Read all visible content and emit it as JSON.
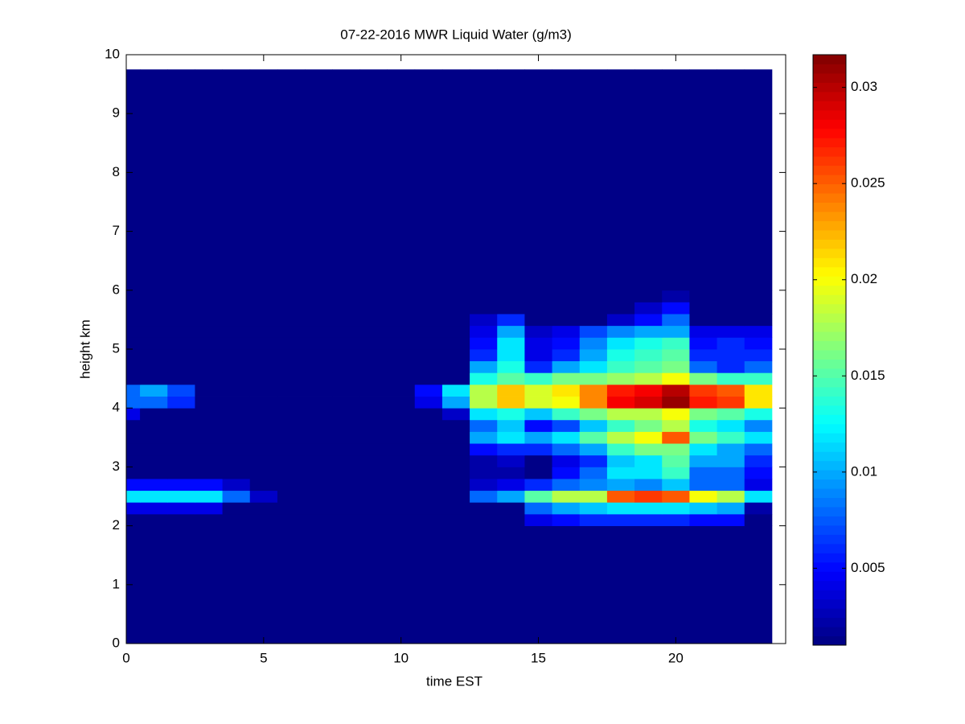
{
  "chart_data": {
    "type": "heatmap",
    "title": "07-22-2016 MWR Liquid Water (g/m3)",
    "xlabel": "time EST",
    "ylabel": "height km",
    "colormap": "jet",
    "x": [
      0,
      0.5,
      1.5,
      2.5,
      3.5,
      4.5,
      5.5,
      6.5,
      7.5,
      8.5,
      9.5,
      10.5,
      11.5,
      12.5,
      13.5,
      14.5,
      15.5,
      16.5,
      17.5,
      18.5,
      19.5,
      20.5,
      21.5,
      22.5,
      23.5
    ],
    "y": [
      0,
      2,
      2.2,
      2.4,
      2.6,
      2.8,
      3,
      3.2,
      3.4,
      3.6,
      3.8,
      4,
      4.2,
      4.4,
      4.6,
      4.8,
      5,
      5.2,
      5.4,
      5.6,
      5.8,
      6,
      9.75
    ],
    "z": [
      [
        0.001,
        0.001,
        0.001,
        0.001,
        0.001,
        0.001,
        0.001,
        0.001,
        0.001,
        0.001,
        0.001,
        0.001,
        0.001,
        0.001,
        0.001,
        0.001,
        0.001,
        0.001,
        0.001,
        0.001,
        0.001,
        0.001,
        0.001,
        0.001
      ],
      [
        0.001,
        0.001,
        0.001,
        0.001,
        0.001,
        0.001,
        0.001,
        0.001,
        0.001,
        0.001,
        0.001,
        0.001,
        0.001,
        0.001,
        0.001,
        0.004,
        0.005,
        0.006,
        0.006,
        0.006,
        0.006,
        0.005,
        0.005,
        0.001
      ],
      [
        0.004,
        0.004,
        0.004,
        0.004,
        0.001,
        0.001,
        0.001,
        0.001,
        0.001,
        0.001,
        0.001,
        0.001,
        0.001,
        0.001,
        0.001,
        0.008,
        0.01,
        0.011,
        0.012,
        0.012,
        0.012,
        0.011,
        0.01,
        0.002
      ],
      [
        0.012,
        0.012,
        0.012,
        0.012,
        0.008,
        0.003,
        0.001,
        0.001,
        0.001,
        0.001,
        0.001,
        0.001,
        0.001,
        0.008,
        0.01,
        0.015,
        0.018,
        0.018,
        0.025,
        0.026,
        0.025,
        0.02,
        0.018,
        0.012
      ],
      [
        0.005,
        0.005,
        0.005,
        0.005,
        0.003,
        0.001,
        0.001,
        0.001,
        0.001,
        0.001,
        0.001,
        0.001,
        0.001,
        0.003,
        0.004,
        0.006,
        0.008,
        0.009,
        0.01,
        0.009,
        0.011,
        0.008,
        0.008,
        0.004
      ],
      [
        0.001,
        0.001,
        0.001,
        0.001,
        0.001,
        0.001,
        0.001,
        0.001,
        0.001,
        0.001,
        0.001,
        0.001,
        0.001,
        0.002,
        0.002,
        0.001,
        0.005,
        0.008,
        0.012,
        0.012,
        0.014,
        0.008,
        0.008,
        0.005
      ],
      [
        0.001,
        0.001,
        0.001,
        0.001,
        0.001,
        0.001,
        0.001,
        0.001,
        0.001,
        0.001,
        0.001,
        0.001,
        0.001,
        0.002,
        0.003,
        0.001,
        0.004,
        0.006,
        0.011,
        0.012,
        0.015,
        0.01,
        0.01,
        0.006
      ],
      [
        0.001,
        0.001,
        0.001,
        0.001,
        0.001,
        0.001,
        0.001,
        0.001,
        0.001,
        0.001,
        0.001,
        0.001,
        0.001,
        0.005,
        0.006,
        0.006,
        0.008,
        0.01,
        0.014,
        0.016,
        0.016,
        0.012,
        0.01,
        0.008
      ],
      [
        0.001,
        0.001,
        0.001,
        0.001,
        0.001,
        0.001,
        0.001,
        0.001,
        0.001,
        0.001,
        0.001,
        0.001,
        0.001,
        0.01,
        0.012,
        0.01,
        0.012,
        0.015,
        0.018,
        0.02,
        0.025,
        0.016,
        0.014,
        0.012
      ],
      [
        0.001,
        0.001,
        0.001,
        0.001,
        0.001,
        0.001,
        0.001,
        0.001,
        0.001,
        0.001,
        0.001,
        0.001,
        0.001,
        0.008,
        0.011,
        0.005,
        0.007,
        0.011,
        0.014,
        0.016,
        0.018,
        0.013,
        0.012,
        0.009
      ],
      [
        0.004,
        0.001,
        0.001,
        0.001,
        0.001,
        0.001,
        0.001,
        0.001,
        0.001,
        0.001,
        0.001,
        0.001,
        0.003,
        0.012,
        0.013,
        0.011,
        0.014,
        0.016,
        0.018,
        0.018,
        0.02,
        0.016,
        0.015,
        0.013
      ],
      [
        0.008,
        0.008,
        0.006,
        0.001,
        0.001,
        0.001,
        0.001,
        0.001,
        0.001,
        0.001,
        0.001,
        0.004,
        0.01,
        0.018,
        0.022,
        0.019,
        0.02,
        0.024,
        0.028,
        0.029,
        0.031,
        0.027,
        0.026,
        0.021
      ],
      [
        0.008,
        0.01,
        0.007,
        0.001,
        0.001,
        0.001,
        0.001,
        0.001,
        0.001,
        0.001,
        0.001,
        0.005,
        0.012,
        0.018,
        0.022,
        0.019,
        0.021,
        0.024,
        0.027,
        0.028,
        0.03,
        0.026,
        0.025,
        0.021
      ],
      [
        0.001,
        0.001,
        0.001,
        0.001,
        0.001,
        0.001,
        0.001,
        0.001,
        0.001,
        0.001,
        0.001,
        0.001,
        0.001,
        0.013,
        0.015,
        0.014,
        0.016,
        0.016,
        0.017,
        0.018,
        0.02,
        0.016,
        0.014,
        0.014
      ],
      [
        0.001,
        0.001,
        0.001,
        0.001,
        0.001,
        0.001,
        0.001,
        0.001,
        0.001,
        0.001,
        0.001,
        0.001,
        0.001,
        0.01,
        0.013,
        0.006,
        0.01,
        0.012,
        0.014,
        0.015,
        0.016,
        0.008,
        0.006,
        0.008
      ],
      [
        0.001,
        0.001,
        0.001,
        0.001,
        0.001,
        0.001,
        0.001,
        0.001,
        0.001,
        0.001,
        0.001,
        0.001,
        0.001,
        0.006,
        0.012,
        0.004,
        0.006,
        0.01,
        0.013,
        0.014,
        0.015,
        0.006,
        0.006,
        0.006
      ],
      [
        0.001,
        0.001,
        0.001,
        0.001,
        0.001,
        0.001,
        0.001,
        0.001,
        0.001,
        0.001,
        0.001,
        0.001,
        0.001,
        0.005,
        0.012,
        0.004,
        0.005,
        0.009,
        0.012,
        0.013,
        0.014,
        0.005,
        0.006,
        0.005
      ],
      [
        0.001,
        0.001,
        0.001,
        0.001,
        0.001,
        0.001,
        0.001,
        0.001,
        0.001,
        0.001,
        0.001,
        0.001,
        0.001,
        0.004,
        0.01,
        0.003,
        0.004,
        0.007,
        0.009,
        0.01,
        0.01,
        0.004,
        0.004,
        0.004
      ],
      [
        0.001,
        0.001,
        0.001,
        0.001,
        0.001,
        0.001,
        0.001,
        0.001,
        0.001,
        0.001,
        0.001,
        0.001,
        0.001,
        0.003,
        0.006,
        0.001,
        0.001,
        0.001,
        0.003,
        0.005,
        0.008,
        0.001,
        0.001,
        0.001
      ],
      [
        0.001,
        0.001,
        0.001,
        0.001,
        0.001,
        0.001,
        0.001,
        0.001,
        0.001,
        0.001,
        0.001,
        0.001,
        0.001,
        0.001,
        0.001,
        0.001,
        0.001,
        0.001,
        0.001,
        0.003,
        0.005,
        0.001,
        0.001,
        0.001
      ],
      [
        0.001,
        0.001,
        0.001,
        0.001,
        0.001,
        0.001,
        0.001,
        0.001,
        0.001,
        0.001,
        0.001,
        0.001,
        0.001,
        0.001,
        0.001,
        0.001,
        0.001,
        0.001,
        0.001,
        0.001,
        0.002,
        0.001,
        0.001,
        0.001
      ],
      [
        0.001,
        0.001,
        0.001,
        0.001,
        0.001,
        0.001,
        0.001,
        0.001,
        0.001,
        0.001,
        0.001,
        0.001,
        0.001,
        0.001,
        0.001,
        0.001,
        0.001,
        0.001,
        0.001,
        0.001,
        0.001,
        0.001,
        0.001,
        0.001
      ]
    ],
    "xlim": [
      0,
      24
    ],
    "ylim": [
      0,
      10
    ],
    "xticks": [
      0,
      5,
      10,
      15,
      20
    ],
    "yticks": [
      0,
      1,
      2,
      3,
      4,
      5,
      6,
      7,
      8,
      9,
      10
    ],
    "clim": [
      0.001,
      0.0317
    ],
    "cticks": [
      0.005,
      0.01,
      0.015,
      0.02,
      0.025,
      0.03
    ]
  }
}
